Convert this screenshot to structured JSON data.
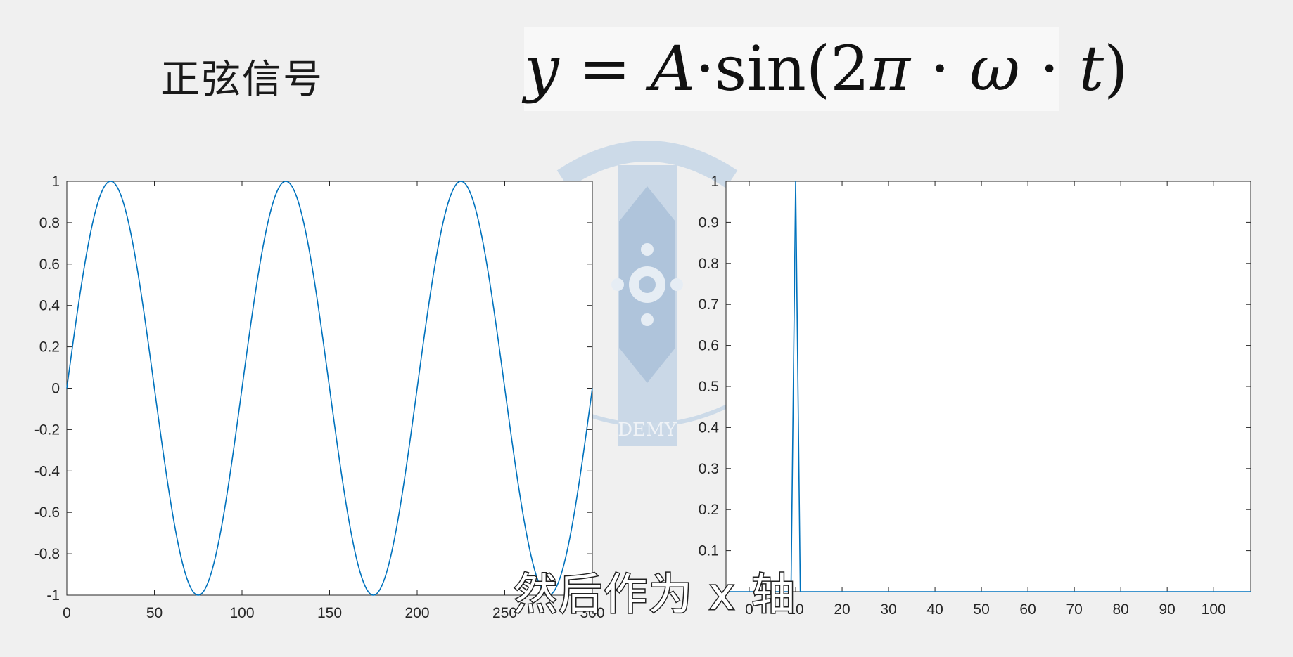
{
  "slide": {
    "title": "正弦信号",
    "formula": {
      "y": "y",
      "eq": " = ",
      "A": "A",
      "dot1": "·",
      "sin": "sin(2",
      "pi": "π",
      "dot2": " · ",
      "omega": "ω",
      "dot3": " · ",
      "t": "t",
      "close": ")"
    },
    "caption": "然后作为 x 轴",
    "watermark_text": "DEMY"
  },
  "colors": {
    "line": "#0072bd",
    "axis": "#262626",
    "plot_bg": "#ffffff",
    "watermark": "#b8cce0"
  },
  "chart_data": [
    {
      "type": "line",
      "x_range": [
        0,
        300
      ],
      "ylim": [
        -1,
        1
      ],
      "xticks": [
        0,
        50,
        100,
        150,
        200,
        250,
        300
      ],
      "yticks": [
        -1,
        -0.8,
        -0.6,
        -0.4,
        -0.2,
        0,
        0.2,
        0.4,
        0.6,
        0.8,
        1
      ],
      "function": "sin(2*pi*t/100)",
      "peaks_at_x": [
        25,
        125,
        225
      ],
      "troughs_at_x": [
        75,
        175,
        275
      ],
      "grid": false
    },
    {
      "type": "line",
      "xlim": [
        -5,
        108
      ],
      "ylim": [
        0,
        1
      ],
      "xticks": [
        0,
        10,
        20,
        30,
        40,
        50,
        60,
        70,
        80,
        90,
        100
      ],
      "yticks": [
        0.1,
        0.2,
        0.3,
        0.4,
        0.5,
        0.6,
        0.7,
        0.8,
        0.9,
        1
      ],
      "x": [
        -5,
        8,
        9,
        10,
        11,
        12,
        108
      ],
      "y": [
        0,
        0,
        0,
        1,
        0,
        0,
        0
      ],
      "grid": false
    }
  ]
}
